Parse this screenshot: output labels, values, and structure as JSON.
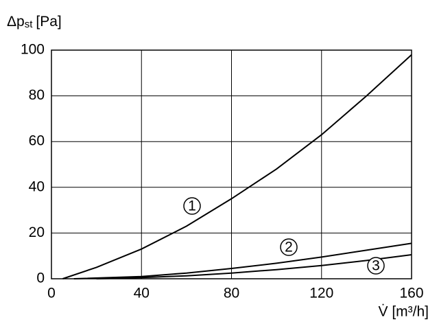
{
  "chart_data": {
    "type": "line",
    "y_label": {
      "main": "Δp",
      "sub": "st",
      "unit": "[Pa]"
    },
    "x_label": "V̇ [m³/h]",
    "xlim": [
      0,
      160
    ],
    "xticks": [
      0,
      40,
      80,
      120,
      160
    ],
    "ylim": [
      0,
      100
    ],
    "yticks": [
      0,
      20,
      40,
      60,
      80,
      100
    ],
    "grid": true,
    "series": [
      {
        "name": "1",
        "color": "#000000",
        "x": [
          5,
          20,
          40,
          60,
          80,
          100,
          120,
          140,
          160
        ],
        "values": [
          0,
          5,
          13,
          23,
          35,
          48,
          63,
          80,
          98
        ]
      },
      {
        "name": "2",
        "color": "#000000",
        "x": [
          10,
          40,
          60,
          80,
          100,
          120,
          140,
          160
        ],
        "values": [
          0,
          1,
          2.5,
          4.5,
          6.8,
          9.5,
          12.5,
          15.5
        ]
      },
      {
        "name": "3",
        "color": "#000000",
        "x": [
          20,
          40,
          60,
          80,
          100,
          120,
          140,
          160
        ],
        "values": [
          0,
          0.5,
          1.3,
          2.5,
          4,
          5.8,
          8,
          10.5
        ]
      }
    ]
  }
}
